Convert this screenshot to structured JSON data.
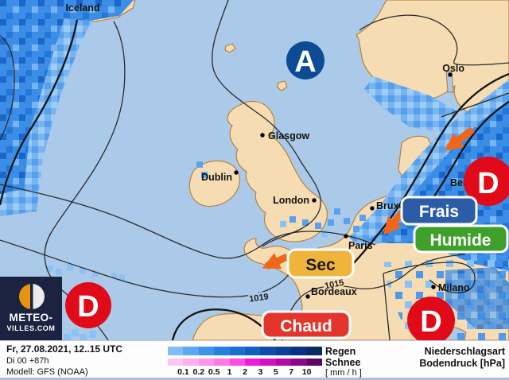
{
  "map": {
    "high_label": "A",
    "low_label": "D",
    "cities": [
      {
        "name": "Iceland"
      },
      {
        "name": "Oslo"
      },
      {
        "name": "Glasgow"
      },
      {
        "name": "Dublin"
      },
      {
        "name": "London"
      },
      {
        "name": "Bruxelles"
      },
      {
        "name": "Paris"
      },
      {
        "name": "Bordeaux"
      },
      {
        "name": "Milano"
      },
      {
        "name": "Berlin"
      }
    ],
    "pressure_labels": [
      {
        "text": "1019"
      },
      {
        "text": "1015"
      }
    ],
    "tags": {
      "frais": "Frais",
      "humide": "Humide",
      "sec": "Sec",
      "chaud": "Chaud"
    },
    "colors": {
      "sea": "#abc9e8",
      "land": "#f5dcb3",
      "coast": "#b97c2e",
      "high": "#0d4c94",
      "low": "#e00a18",
      "arrow": "#f2661c",
      "frais": "#2d5ca6",
      "humide": "#3ea02a",
      "sec": "#f0b33c",
      "chaud": "#e4352c"
    }
  },
  "logo": {
    "line1": "METEO-",
    "line2": "VILLES.COM"
  },
  "footer": {
    "date": "Fr, 27.08.2021, 12..15 UTC",
    "run": "Di 00 +87h",
    "model": "Modell: GFS (NOAA)",
    "rain_label": "Regen",
    "snow_label": "Schnee",
    "unit_label": "[ mm / h ]",
    "right_line1": "Niederschlagsart",
    "right_line2": "Bodendruck [hPa]",
    "ticks": [
      "0.1",
      "0.2",
      "0.5",
      "1",
      "2",
      "3",
      "5",
      "7",
      "10"
    ],
    "rain_colors": [
      "#82bdf8",
      "#5aa7f3",
      "#3b93ec",
      "#2381e2",
      "#1a71d2",
      "#155fc0",
      "#104dab",
      "#0c3f97",
      "#093280",
      "#0a2a62"
    ],
    "snow_colors": [
      "#ffc6f4",
      "#ffb0ef",
      "#ff96ec",
      "#ff78e8",
      "#ff4ce2",
      "#f21ad6",
      "#d413c0",
      "#b10ca6",
      "#8d0788",
      "#5e035f"
    ]
  }
}
